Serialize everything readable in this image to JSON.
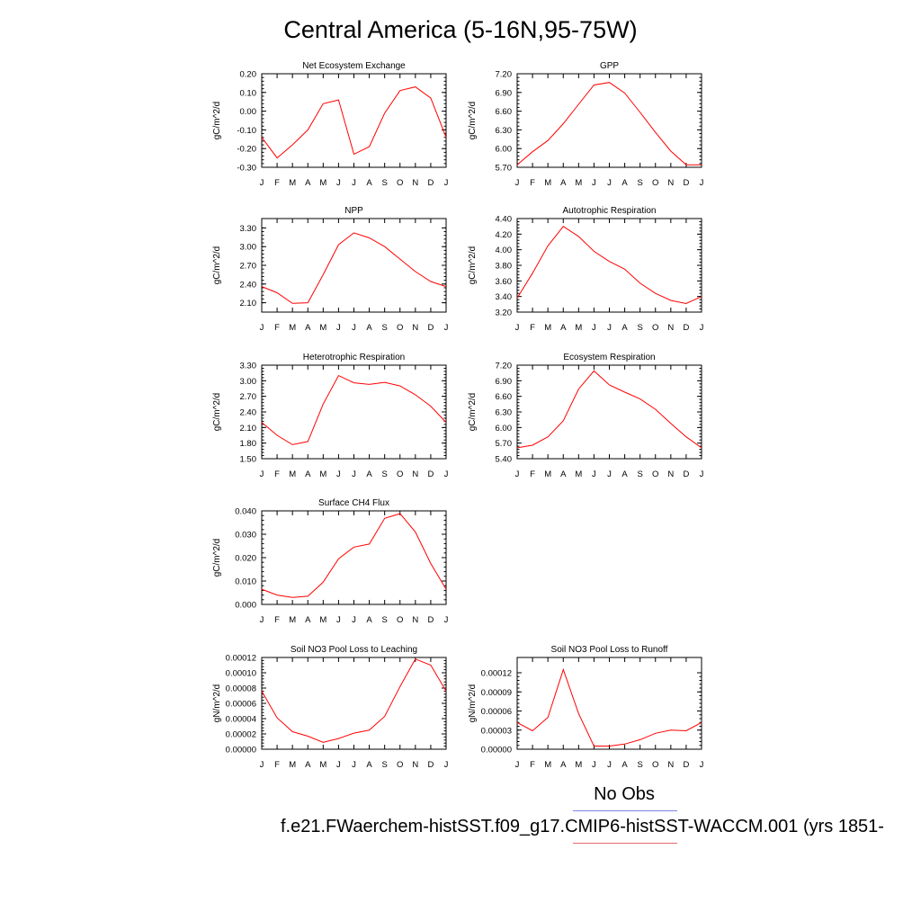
{
  "page_title": "Central America (5-16N,95-75W)",
  "legend": {
    "obs_label": "No Obs",
    "obs_color": "#7a86e6",
    "case_label": "f.e21.FWaerchem-histSST.f09_g17.CMIP6-histSST-WACCM.001 (yrs 1851-",
    "case_color": "#e66a6a"
  },
  "chart_data": [
    {
      "type": "line",
      "title": "Net Ecosystem Exchange",
      "ylabel": "gC/m^2/d",
      "categories": [
        "J",
        "F",
        "M",
        "A",
        "M",
        "J",
        "J",
        "A",
        "S",
        "O",
        "N",
        "D",
        "J"
      ],
      "ylim": [
        -0.3,
        0.2
      ],
      "yticks": [
        "-0.30",
        "-0.20",
        "-0.10",
        "0.00",
        "0.10",
        "0.20"
      ],
      "series": [
        {
          "color": "#ff0000",
          "values": [
            -0.14,
            -0.25,
            -0.18,
            -0.1,
            0.04,
            0.06,
            -0.23,
            -0.19,
            -0.01,
            0.11,
            0.13,
            0.07,
            -0.14
          ]
        }
      ]
    },
    {
      "type": "line",
      "title": "GPP",
      "ylabel": "gC/m^2/d",
      "categories": [
        "J",
        "F",
        "M",
        "A",
        "M",
        "J",
        "J",
        "A",
        "S",
        "O",
        "N",
        "D",
        "J"
      ],
      "ylim": [
        5.7,
        7.2
      ],
      "yticks": [
        "5.70",
        "6.00",
        "6.30",
        "6.60",
        "6.90",
        "7.20"
      ],
      "series": [
        {
          "color": "#ff0000",
          "values": [
            5.74,
            5.95,
            6.13,
            6.4,
            6.71,
            7.02,
            7.06,
            6.89,
            6.58,
            6.26,
            5.96,
            5.74,
            5.74
          ]
        }
      ]
    },
    {
      "type": "line",
      "title": "NPP",
      "ylabel": "gC/m^2/d",
      "categories": [
        "J",
        "F",
        "M",
        "A",
        "M",
        "J",
        "J",
        "A",
        "S",
        "O",
        "N",
        "D",
        "J"
      ],
      "ylim": [
        1.95,
        3.45
      ],
      "yticks": [
        "2.10",
        "2.40",
        "2.70",
        "3.00",
        "3.30"
      ],
      "series": [
        {
          "color": "#ff0000",
          "values": [
            2.36,
            2.26,
            2.09,
            2.1,
            2.55,
            3.03,
            3.22,
            3.14,
            3.0,
            2.8,
            2.6,
            2.44,
            2.36
          ]
        }
      ]
    },
    {
      "type": "line",
      "title": "Autotrophic Respiration",
      "ylabel": "gC/m^2/d",
      "categories": [
        "J",
        "F",
        "M",
        "A",
        "M",
        "J",
        "J",
        "A",
        "S",
        "O",
        "N",
        "D",
        "J"
      ],
      "ylim": [
        3.2,
        4.4
      ],
      "yticks": [
        "3.20",
        "3.40",
        "3.60",
        "3.80",
        "4.00",
        "4.20",
        "4.40"
      ],
      "series": [
        {
          "color": "#ff0000",
          "values": [
            3.38,
            3.7,
            4.05,
            4.3,
            4.17,
            3.98,
            3.85,
            3.75,
            3.57,
            3.44,
            3.35,
            3.31,
            3.4
          ]
        }
      ]
    },
    {
      "type": "line",
      "title": "Heterotrophic Respiration",
      "ylabel": "gC/m^2/d",
      "categories": [
        "J",
        "F",
        "M",
        "A",
        "M",
        "J",
        "J",
        "A",
        "S",
        "O",
        "N",
        "D",
        "J"
      ],
      "ylim": [
        1.5,
        3.3
      ],
      "yticks": [
        "1.50",
        "1.80",
        "2.10",
        "2.40",
        "2.70",
        "3.00",
        "3.30"
      ],
      "series": [
        {
          "color": "#ff0000",
          "values": [
            2.2,
            1.95,
            1.77,
            1.83,
            2.55,
            3.1,
            2.96,
            2.93,
            2.97,
            2.9,
            2.73,
            2.51,
            2.2
          ]
        }
      ]
    },
    {
      "type": "line",
      "title": "Ecosystem Respiration",
      "ylabel": "gC/m^2/d",
      "categories": [
        "J",
        "F",
        "M",
        "A",
        "M",
        "J",
        "J",
        "A",
        "S",
        "O",
        "N",
        "D",
        "J"
      ],
      "ylim": [
        5.4,
        7.2
      ],
      "yticks": [
        "5.40",
        "5.70",
        "6.00",
        "6.30",
        "6.60",
        "6.90",
        "7.20"
      ],
      "series": [
        {
          "color": "#ff0000",
          "values": [
            5.61,
            5.66,
            5.82,
            6.13,
            6.74,
            7.09,
            6.82,
            6.68,
            6.55,
            6.35,
            6.08,
            5.82,
            5.61
          ]
        }
      ]
    },
    {
      "type": "line",
      "title": "Surface CH4 Flux",
      "ylabel": "gC/m^2/d",
      "categories": [
        "J",
        "F",
        "M",
        "A",
        "M",
        "J",
        "J",
        "A",
        "S",
        "O",
        "N",
        "D",
        "J"
      ],
      "ylim": [
        0.0,
        0.04
      ],
      "yticks": [
        "0.000",
        "0.010",
        "0.020",
        "0.030",
        "0.040"
      ],
      "series": [
        {
          "color": "#ff0000",
          "values": [
            0.0065,
            0.004,
            0.003,
            0.0035,
            0.0095,
            0.0195,
            0.0245,
            0.0258,
            0.0368,
            0.0388,
            0.031,
            0.0175,
            0.0065
          ]
        }
      ]
    },
    {
      "type": "line",
      "title": "Soil NO3 Pool Loss to Leaching",
      "ylabel": "gN/m^2/d",
      "categories": [
        "J",
        "F",
        "M",
        "A",
        "M",
        "J",
        "J",
        "A",
        "S",
        "O",
        "N",
        "D",
        "J"
      ],
      "ylim": [
        0.0,
        0.00012
      ],
      "yticks": [
        "0.00000",
        "0.00002",
        "0.00004",
        "0.00006",
        "0.00008",
        "0.00010",
        "0.00012"
      ],
      "series": [
        {
          "color": "#ff0000",
          "values": [
            7.6e-05,
            4.1e-05,
            2.3e-05,
            1.7e-05,
            9e-06,
            1.4e-05,
            2.1e-05,
            2.5e-05,
            4.3e-05,
            8.2e-05,
            0.000118,
            0.00011,
            7.6e-05
          ]
        }
      ]
    },
    {
      "type": "line",
      "title": "Soil NO3 Pool Loss to Runoff",
      "ylabel": "gN/m^2/d",
      "categories": [
        "J",
        "F",
        "M",
        "A",
        "M",
        "J",
        "J",
        "A",
        "S",
        "O",
        "N",
        "D",
        "J"
      ],
      "ylim": [
        0.0,
        0.000144
      ],
      "yticks": [
        "0.00000",
        "0.00003",
        "0.00006",
        "0.00009",
        "0.00012"
      ],
      "series": [
        {
          "color": "#ff0000",
          "values": [
            4.2e-05,
            2.9e-05,
            5e-05,
            0.000125,
            5.6e-05,
            5e-06,
            5e-06,
            8e-06,
            1.5e-05,
            2.5e-05,
            3e-05,
            2.9e-05,
            4.2e-05
          ]
        }
      ]
    }
  ]
}
